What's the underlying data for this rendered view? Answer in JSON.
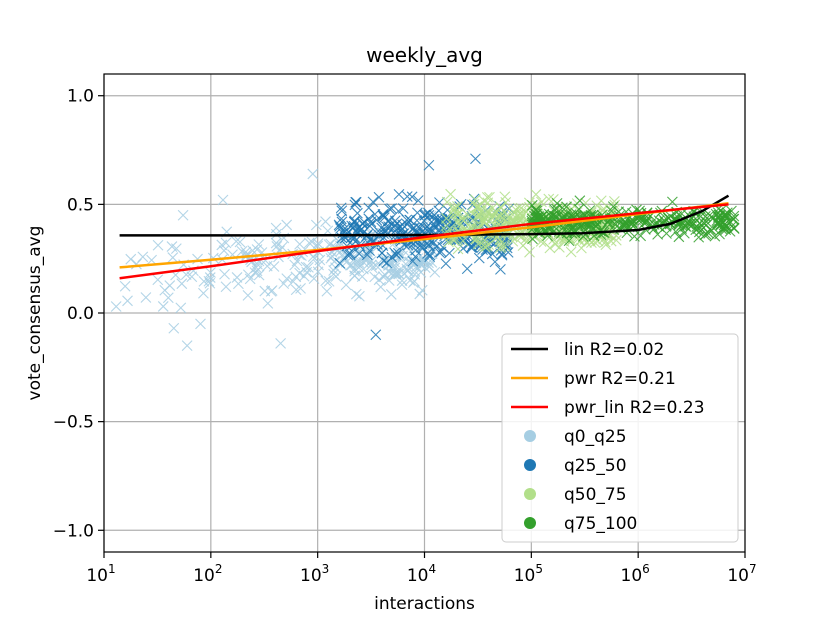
{
  "chart_data": {
    "type": "scatter",
    "title": "weekly_avg",
    "xlabel": "interactions",
    "ylabel": "vote_consensus_avg",
    "xscale": "log",
    "xlim": [
      10,
      10000000
    ],
    "ylim": [
      -1.1,
      1.1
    ],
    "x_ticks": [
      {
        "value": 10,
        "base": "10",
        "exp": "1"
      },
      {
        "value": 100,
        "base": "10",
        "exp": "2"
      },
      {
        "value": 1000,
        "base": "10",
        "exp": "3"
      },
      {
        "value": 10000,
        "base": "10",
        "exp": "4"
      },
      {
        "value": 100000,
        "base": "10",
        "exp": "5"
      },
      {
        "value": 1000000,
        "base": "10",
        "exp": "6"
      },
      {
        "value": 10000000,
        "base": "10",
        "exp": "7"
      }
    ],
    "y_ticks": [
      {
        "value": 1.0,
        "label": "1.0"
      },
      {
        "value": 0.5,
        "label": "0.5"
      },
      {
        "value": 0.0,
        "label": "0.0"
      },
      {
        "value": -0.5,
        "label": "−0.5"
      },
      {
        "value": -1.0,
        "label": "−1.0"
      }
    ],
    "grid": true,
    "legend_position": "lower-right",
    "lines": [
      {
        "name": "lin R2=0.02",
        "color": "#000000",
        "x": [
          14,
          100,
          1000,
          10000,
          100000,
          300000,
          1000000,
          2000000,
          4000000,
          7000000
        ],
        "y": [
          0.357,
          0.357,
          0.358,
          0.359,
          0.363,
          0.367,
          0.382,
          0.41,
          0.47,
          0.54
        ]
      },
      {
        "name": "pwr R2=0.21",
        "color": "#ffa500",
        "x": [
          14,
          100,
          1000,
          10000,
          100000,
          1000000,
          7000000
        ],
        "y": [
          0.21,
          0.245,
          0.29,
          0.34,
          0.395,
          0.455,
          0.505
        ]
      },
      {
        "name": "pwr_lin R2=0.23",
        "color": "#ff0000",
        "x": [
          14,
          100,
          1000,
          10000,
          100000,
          1000000,
          7000000
        ],
        "y": [
          0.16,
          0.215,
          0.285,
          0.35,
          0.41,
          0.46,
          0.5
        ]
      }
    ],
    "scatter_series": [
      {
        "name": "q0_q25",
        "color": "#a6cee3",
        "log_x_range": [
          1.1,
          4.1
        ],
        "y_center": 0.27,
        "y_spread": 0.14,
        "count": 260
      },
      {
        "name": "q25_50",
        "color": "#1f78b4",
        "log_x_range": [
          3.2,
          4.8
        ],
        "y_center": 0.37,
        "y_spread": 0.12,
        "count": 330
      },
      {
        "name": "q50_75",
        "color": "#b2df8a",
        "log_x_range": [
          4.2,
          5.8
        ],
        "y_center": 0.41,
        "y_spread": 0.1,
        "count": 320
      },
      {
        "name": "q75_100",
        "color": "#33a02c",
        "log_x_range": [
          5.0,
          6.9
        ],
        "y_center": 0.42,
        "y_spread": 0.06,
        "count": 330
      }
    ],
    "outliers": [
      {
        "series": "q0_q25",
        "x": 13,
        "y": 0.03
      },
      {
        "series": "q0_q25",
        "x": 45,
        "y": -0.07
      },
      {
        "series": "q0_q25",
        "x": 55,
        "y": 0.45
      },
      {
        "series": "q0_q25",
        "x": 40,
        "y": 0.07
      },
      {
        "series": "q0_q25",
        "x": 80,
        "y": -0.05
      },
      {
        "series": "q0_q25",
        "x": 60,
        "y": -0.15
      },
      {
        "series": "q0_q25",
        "x": 450,
        "y": -0.14
      },
      {
        "series": "q0_q25",
        "x": 900,
        "y": 0.64
      },
      {
        "series": "q0_q25",
        "x": 130,
        "y": 0.52
      },
      {
        "series": "q25_50",
        "x": 3500,
        "y": -0.1
      },
      {
        "series": "q25_50",
        "x": 11000,
        "y": 0.68
      },
      {
        "series": "q25_50",
        "x": 30000,
        "y": 0.71
      }
    ],
    "legend": [
      {
        "label": "lin R2=0.02",
        "kind": "line",
        "color": "#000000"
      },
      {
        "label": "pwr R2=0.21",
        "kind": "line",
        "color": "#ffa500"
      },
      {
        "label": "pwr_lin R2=0.23",
        "kind": "line",
        "color": "#ff0000"
      },
      {
        "label": "q0_q25",
        "kind": "marker",
        "color": "#a6cee3"
      },
      {
        "label": "q25_50",
        "kind": "marker",
        "color": "#1f78b4"
      },
      {
        "label": "q50_75",
        "kind": "marker",
        "color": "#b2df8a"
      },
      {
        "label": "q75_100",
        "kind": "marker",
        "color": "#33a02c"
      }
    ]
  }
}
